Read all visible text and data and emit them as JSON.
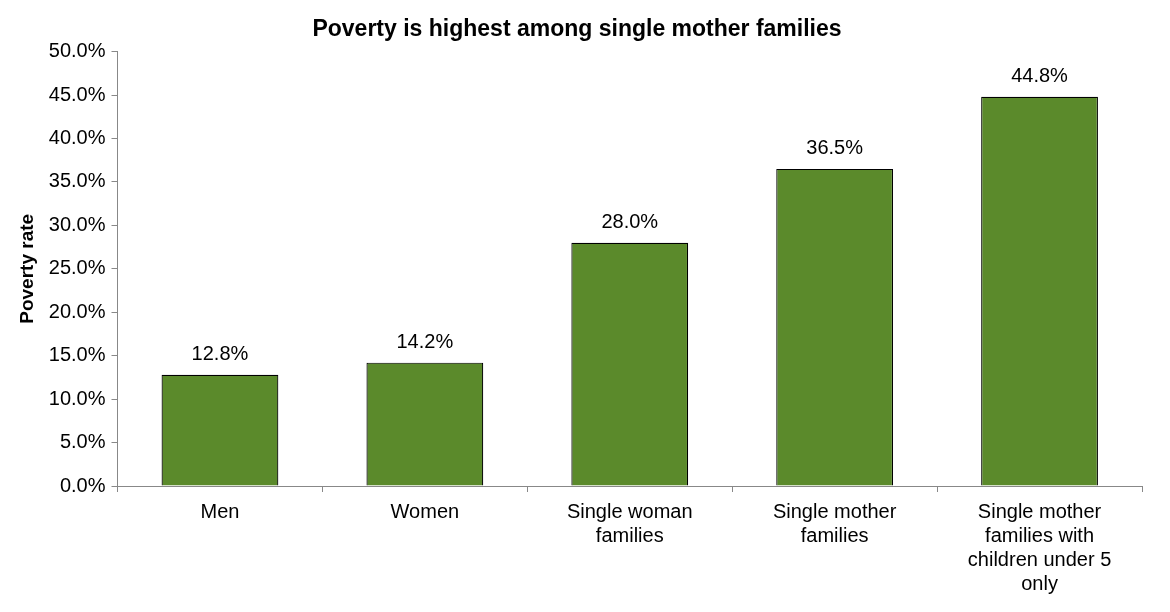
{
  "chart_data": {
    "type": "bar",
    "title": "Poverty is highest among single mother families",
    "ylabel": "Poverty rate",
    "categories": [
      "Men",
      "Women",
      "Single woman families",
      "Single mother families",
      "Single mother families with children under 5 only"
    ],
    "values": [
      12.8,
      14.2,
      28.0,
      36.5,
      44.8
    ],
    "value_labels": [
      "12.8%",
      "14.2%",
      "28.0%",
      "36.5%",
      "44.8%"
    ],
    "color": "#5b8a2b",
    "ylim": [
      0,
      50
    ],
    "yticks": [
      {
        "value": 0,
        "label": "0.0%"
      },
      {
        "value": 5,
        "label": "5.0%"
      },
      {
        "value": 10,
        "label": "10.0%"
      },
      {
        "value": 15,
        "label": "15.0%"
      },
      {
        "value": 20,
        "label": "20.0%"
      },
      {
        "value": 25,
        "label": "25.0%"
      },
      {
        "value": 30,
        "label": "30.0%"
      },
      {
        "value": 35,
        "label": "35.0%"
      },
      {
        "value": 40,
        "label": "40.0%"
      },
      {
        "value": 45,
        "label": "45.0%"
      },
      {
        "value": 50,
        "label": "50.0%"
      }
    ],
    "grid": false,
    "legend": false
  }
}
